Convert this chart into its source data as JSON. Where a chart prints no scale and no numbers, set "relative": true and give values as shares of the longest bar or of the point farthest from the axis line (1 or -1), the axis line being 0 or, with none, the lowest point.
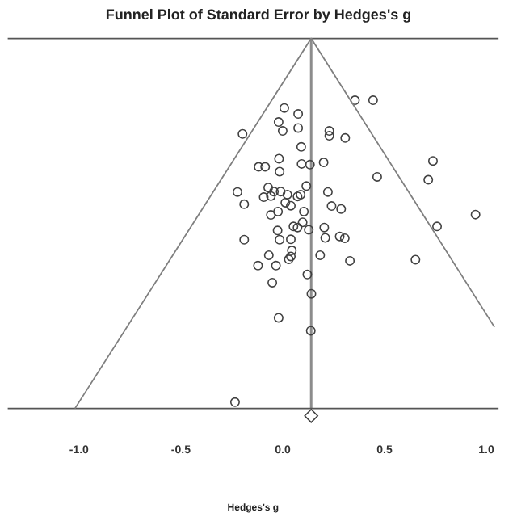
{
  "chart_data": {
    "type": "scatter",
    "title": "Funnel Plot of Standard Error by Hedges's g",
    "xlabel": "Hedges's g",
    "relative": true,
    "legend": false,
    "tick_labels": "x",
    "xlim": [
      -1.35,
      1.06
    ],
    "xticks": [
      {
        "value": -1,
        "label": "-1.0"
      },
      -0.5,
      {
        "value": 0,
        "label": "0.0"
      },
      0.5,
      {
        "value": 1,
        "label": "1.0"
      }
    ],
    "ref_lines": [
      {
        "axis": "x",
        "value": 0.14,
        "color": "#8c8c8c"
      }
    ],
    "series": [
      {
        "type": "line",
        "color": "#7f7f7f",
        "marker": "none",
        "x": [
          -1.02,
          0.14,
          1.04
        ],
        "values": [
          0,
          1,
          0.22
        ]
      },
      {
        "type": "scatter",
        "color": "#404040",
        "marker": "circle",
        "x": [
          0.355,
          0.444,
          0.008,
          0.076,
          -0.02,
          0.076,
          0.0,
          -0.197,
          0.229,
          0.229,
          0.307,
          0.091,
          -0.018,
          -0.118,
          -0.086,
          -0.015,
          0.093,
          0.134,
          0.201,
          0.738,
          0.464,
          0.715,
          -0.222,
          -0.071,
          -0.043,
          -0.01,
          0.023,
          -0.093,
          -0.058,
          0.116,
          0.088,
          0.073,
          0.222,
          -0.189,
          0.013,
          0.04,
          0.24,
          0.287,
          0.104,
          -0.023,
          -0.058,
          0.947,
          0.758,
          0.053,
          0.073,
          0.098,
          0.128,
          -0.025,
          0.204,
          -0.189,
          -0.015,
          0.04,
          0.28,
          0.305,
          0.209,
          0.045,
          -0.068,
          0.04,
          0.03,
          0.184,
          0.33,
          0.652,
          -0.121,
          -0.033,
          0.121,
          -0.051,
          0.141,
          -0.02,
          0.138,
          -0.234
        ],
        "values": [
          0.833,
          0.833,
          0.812,
          0.796,
          0.774,
          0.758,
          0.75,
          0.742,
          0.75,
          0.737,
          0.731,
          0.707,
          0.675,
          0.653,
          0.653,
          0.64,
          0.661,
          0.659,
          0.665,
          0.669,
          0.626,
          0.618,
          0.585,
          0.597,
          0.586,
          0.586,
          0.578,
          0.571,
          0.574,
          0.601,
          0.578,
          0.573,
          0.585,
          0.552,
          0.556,
          0.548,
          0.547,
          0.539,
          0.532,
          0.532,
          0.523,
          0.524,
          0.492,
          0.492,
          0.489,
          0.503,
          0.483,
          0.481,
          0.489,
          0.456,
          0.456,
          0.457,
          0.465,
          0.46,
          0.461,
          0.427,
          0.414,
          0.411,
          0.403,
          0.414,
          0.399,
          0.402,
          0.386,
          0.386,
          0.362,
          0.34,
          0.31,
          0.245,
          0.21,
          0.017
        ]
      },
      {
        "type": "scatter",
        "color": "#404040",
        "marker": "diamond",
        "x": [
          0.14
        ],
        "values": [
          -0.02
        ]
      }
    ]
  }
}
